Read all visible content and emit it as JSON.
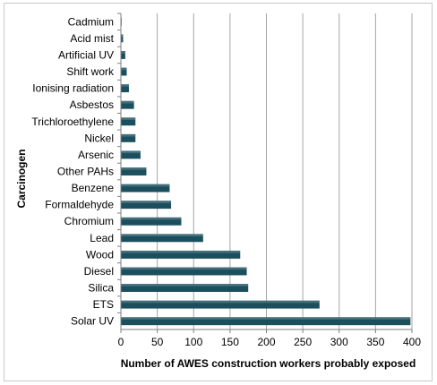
{
  "chart_data": {
    "type": "bar",
    "orientation": "horizontal",
    "xlabel": "Number of AWES construction workers probably exposed",
    "ylabel": "Carcinogen",
    "xlim": [
      0,
      400
    ],
    "xticks": [
      0,
      50,
      100,
      150,
      200,
      250,
      300,
      350,
      400
    ],
    "grid": "vertical",
    "legend": "none",
    "bar_color": "#1b4f5e",
    "categories": [
      "Cadmium",
      "Acid mist",
      "Artificial UV",
      "Shift work",
      "Ionising radiation",
      "Asbestos",
      "Trichloroethylene",
      "Nickel",
      "Arsenic",
      "Other PAHs",
      "Benzene",
      "Formaldehyde",
      "Chromium",
      "Lead",
      "Wood",
      "Diesel",
      "Silica",
      "ETS",
      "Solar UV"
    ],
    "values": [
      1,
      3,
      6,
      8,
      11,
      18,
      20,
      20,
      27,
      35,
      67,
      69,
      83,
      113,
      164,
      173,
      175,
      273,
      398
    ]
  }
}
